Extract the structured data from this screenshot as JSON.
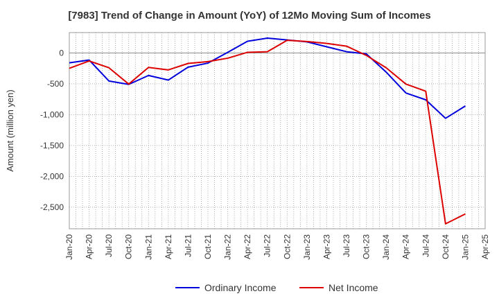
{
  "chart_data": {
    "type": "line",
    "title": "[7983]  Trend of Change in Amount (YoY) of 12Mo Moving Sum of Incomes",
    "xlabel": "",
    "ylabel": "Amount (million yen)",
    "ylim": [
      -2850,
      330
    ],
    "y_ticks": [
      0,
      -500,
      -1000,
      -1500,
      -2000,
      -2500
    ],
    "y_tick_labels": [
      "0",
      "-500",
      "-1,000",
      "-1,500",
      "-2,000",
      "-2,500"
    ],
    "x_tick_labels": [
      "Jan-20",
      "Apr-20",
      "Jul-20",
      "Oct-20",
      "Jan-21",
      "Apr-21",
      "Jul-21",
      "Oct-21",
      "Jan-22",
      "Apr-22",
      "Jul-22",
      "Oct-22",
      "Jan-23",
      "Apr-23",
      "Jul-23",
      "Oct-23",
      "Jan-24",
      "Apr-24",
      "Jul-24",
      "Oct-24",
      "Jan-25",
      "Apr-25"
    ],
    "grid": true,
    "legend_position": "bottom",
    "series": [
      {
        "name": "Ordinary Income",
        "color": "#0000dd",
        "values": [
          -160,
          -115,
          -455,
          -510,
          -365,
          -440,
          -230,
          -165,
          10,
          190,
          240,
          210,
          180,
          100,
          20,
          -15,
          -310,
          -650,
          -760,
          -1060,
          -860
        ]
      },
      {
        "name": "Net Income",
        "color": "#dd0000",
        "values": [
          -250,
          -130,
          -240,
          -505,
          -235,
          -275,
          -170,
          -140,
          -85,
          10,
          20,
          205,
          185,
          155,
          110,
          -40,
          -240,
          -505,
          -620,
          -2770,
          -2610
        ]
      }
    ]
  }
}
